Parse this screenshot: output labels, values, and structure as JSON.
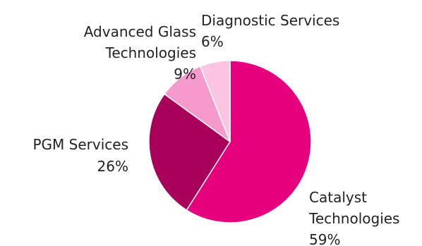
{
  "chart_data": {
    "type": "pie",
    "title": "",
    "start_angle_deg": 0,
    "direction": "clockwise",
    "slices": [
      {
        "label_lines": [
          "Catalyst",
          "Technologies"
        ],
        "value": 59,
        "display": "59%",
        "color": "#E6007E"
      },
      {
        "label_lines": [
          "PGM Services"
        ],
        "value": 26,
        "display": "26%",
        "color": "#A8005A"
      },
      {
        "label_lines": [
          "Advanced Glass",
          "Technologies"
        ],
        "value": 9,
        "display": "9%",
        "color": "#F59ACB"
      },
      {
        "label_lines": [
          "Diagnostic Services"
        ],
        "value": 6,
        "display": "6%",
        "color": "#FBC5E2"
      }
    ]
  }
}
